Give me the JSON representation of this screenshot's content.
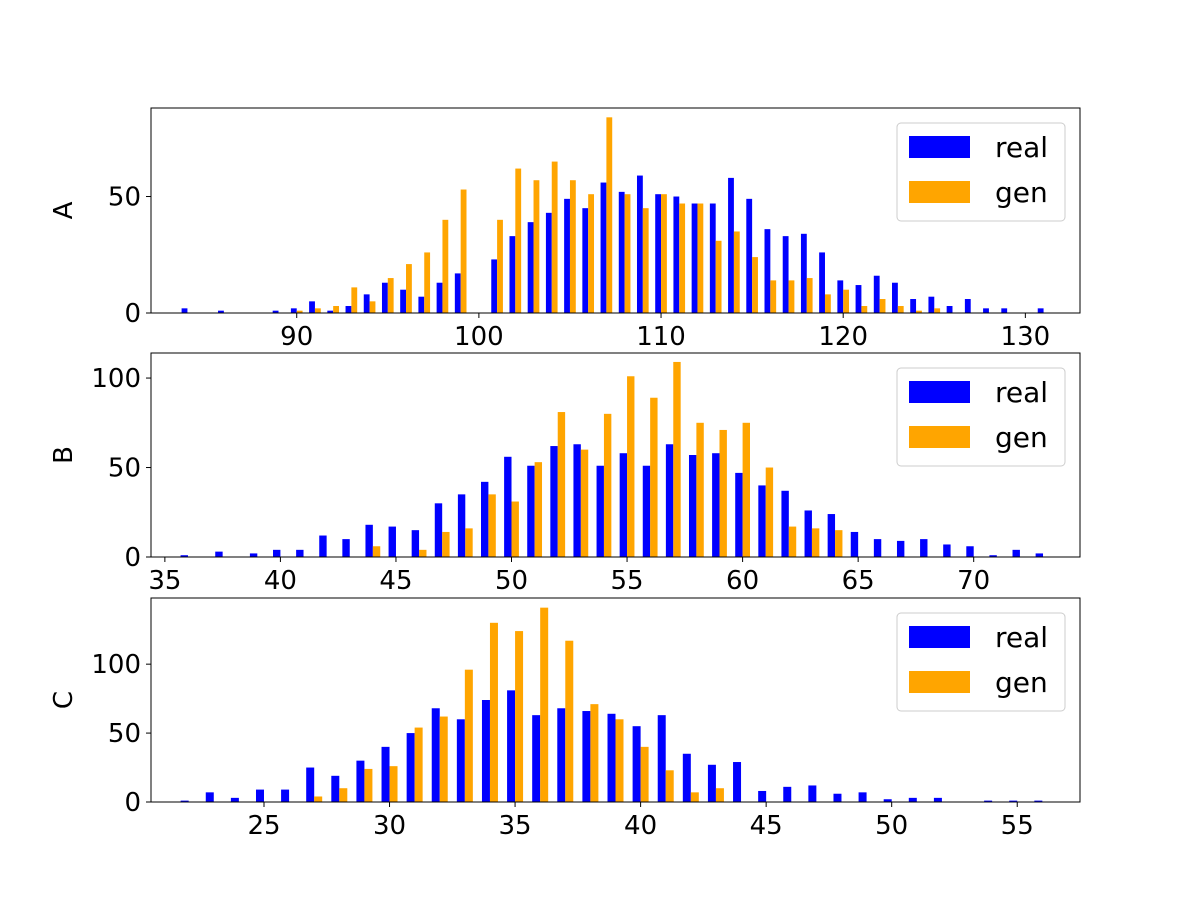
{
  "colors": {
    "real": "#0000ff",
    "gen": "#ffa500"
  },
  "chart_data": [
    {
      "type": "bar",
      "ylabel": "A",
      "xlim": [
        82,
        133
      ],
      "ylim": [
        0,
        88
      ],
      "xticks": [
        90,
        100,
        110,
        120,
        130
      ],
      "yticks": [
        0,
        50
      ],
      "legend": "top-right",
      "grid": false,
      "series": [
        {
          "name": "real",
          "color": "#0000ff",
          "x": [
            84,
            86,
            89,
            90,
            91,
            92,
            93,
            94,
            95,
            96,
            97,
            98,
            99,
            101,
            102,
            103,
            104,
            105,
            106,
            107,
            108,
            109,
            110,
            111,
            112,
            113,
            114,
            115,
            116,
            117,
            118,
            119,
            120,
            121,
            122,
            123,
            124,
            125,
            126,
            127,
            128,
            129,
            131
          ],
          "y": [
            2,
            1,
            1,
            2,
            5,
            1,
            3,
            8,
            13,
            10,
            7,
            13,
            17,
            23,
            33,
            39,
            43,
            49,
            45,
            56,
            52,
            59,
            51,
            50,
            47,
            47,
            58,
            49,
            36,
            33,
            34,
            26,
            14,
            12,
            16,
            13,
            6,
            7,
            3,
            6,
            2,
            2,
            2
          ]
        },
        {
          "name": "gen",
          "color": "#ffa500",
          "x": [
            90,
            91,
            92,
            93,
            94,
            95,
            96,
            97,
            98,
            99,
            101,
            102,
            103,
            104,
            105,
            106,
            107,
            108,
            109,
            110,
            111,
            112,
            113,
            114,
            115,
            116,
            117,
            118,
            119,
            120,
            121,
            122,
            123,
            124,
            125
          ],
          "y": [
            1,
            2,
            3,
            11,
            5,
            15,
            21,
            26,
            40,
            53,
            40,
            62,
            57,
            65,
            57,
            51,
            84,
            51,
            45,
            51,
            47,
            47,
            31,
            35,
            24,
            14,
            14,
            15,
            8,
            10,
            3,
            6,
            3,
            1,
            2
          ]
        }
      ]
    },
    {
      "type": "bar",
      "ylabel": "B",
      "xlim": [
        34.4,
        74.6
      ],
      "ylim": [
        0,
        114
      ],
      "xticks": [
        35,
        40,
        45,
        50,
        55,
        60,
        65,
        70
      ],
      "yticks": [
        0,
        50,
        100
      ],
      "legend": "top-right",
      "grid": false,
      "series": [
        {
          "name": "real",
          "color": "#0000ff",
          "x": [
            36,
            37.5,
            39,
            40,
            41,
            42,
            43,
            44,
            45,
            46,
            47,
            48,
            49,
            50,
            51,
            52,
            53,
            54,
            55,
            56,
            57,
            58,
            59,
            60,
            61,
            62,
            63,
            64,
            65,
            66,
            67,
            68,
            69,
            70,
            71,
            72,
            73
          ],
          "y": [
            1,
            3,
            2,
            4,
            4,
            12,
            10,
            18,
            17,
            15,
            30,
            35,
            42,
            56,
            51,
            62,
            63,
            51,
            58,
            51,
            63,
            57,
            58,
            47,
            40,
            37,
            26,
            24,
            14,
            10,
            9,
            10,
            7,
            6,
            1,
            4,
            2
          ]
        },
        {
          "name": "gen",
          "color": "#ffa500",
          "x": [
            44,
            46,
            47,
            48,
            49,
            50,
            51,
            52,
            53,
            54,
            55,
            56,
            57,
            58,
            59,
            60,
            61,
            62,
            63,
            64
          ],
          "y": [
            6,
            4,
            14,
            16,
            35,
            31,
            53,
            81,
            60,
            80,
            101,
            89,
            109,
            75,
            71,
            75,
            50,
            17,
            16,
            15
          ]
        }
      ]
    },
    {
      "type": "bar",
      "ylabel": "C",
      "xlim": [
        20.5,
        57.5
      ],
      "ylim": [
        0,
        148
      ],
      "xticks": [
        25,
        30,
        35,
        40,
        45,
        50,
        55
      ],
      "yticks": [
        0,
        50,
        100
      ],
      "legend": "top-right",
      "grid": false,
      "series": [
        {
          "name": "real",
          "color": "#0000ff",
          "x": [
            22,
            23,
            24,
            25,
            26,
            27,
            28,
            29,
            30,
            31,
            32,
            33,
            34,
            35,
            36,
            37,
            38,
            39,
            40,
            41,
            42,
            43,
            44,
            45,
            46,
            47,
            48,
            49,
            50,
            51,
            52,
            54,
            55,
            56
          ],
          "y": [
            1,
            7,
            3,
            9,
            9,
            25,
            19,
            30,
            40,
            50,
            68,
            60,
            74,
            81,
            63,
            68,
            66,
            64,
            55,
            63,
            35,
            27,
            29,
            8,
            11,
            12,
            6,
            7,
            2,
            3,
            3,
            1,
            1,
            1
          ]
        },
        {
          "name": "gen",
          "color": "#ffa500",
          "x": [
            27,
            28,
            29,
            30,
            31,
            32,
            33,
            34,
            35,
            36,
            37,
            38,
            39,
            40,
            41,
            42,
            43
          ],
          "y": [
            4,
            10,
            24,
            26,
            54,
            62,
            96,
            130,
            124,
            141,
            117,
            71,
            60,
            40,
            23,
            7,
            10
          ]
        }
      ]
    }
  ]
}
